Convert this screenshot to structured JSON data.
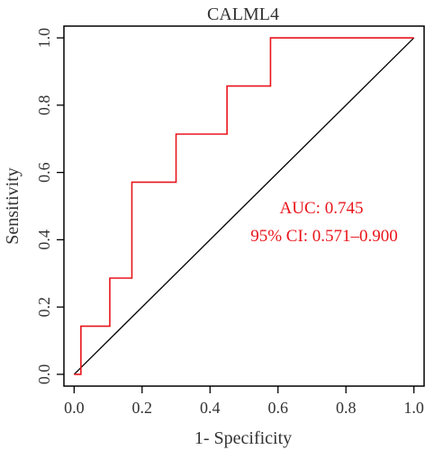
{
  "chart_data": {
    "type": "line",
    "title": "CALML4",
    "xlabel": "1- Specificity",
    "ylabel": "Sensitivity",
    "xlim": [
      -0.03,
      1.03
    ],
    "ylim": [
      -0.035,
      1.035
    ],
    "x_ticks": [
      {
        "value": 0.0,
        "label": "0.0"
      },
      {
        "value": 0.2,
        "label": "0.2"
      },
      {
        "value": 0.4,
        "label": "0.4"
      },
      {
        "value": 0.6,
        "label": "0.6"
      },
      {
        "value": 0.8,
        "label": "0.8"
      },
      {
        "value": 1.0,
        "label": "1.0"
      }
    ],
    "y_ticks": [
      {
        "value": 0.0,
        "label": "0.0"
      },
      {
        "value": 0.2,
        "label": "0.2"
      },
      {
        "value": 0.4,
        "label": "0.4"
      },
      {
        "value": 0.6,
        "label": "0.6"
      },
      {
        "value": 0.8,
        "label": "0.8"
      },
      {
        "value": 1.0,
        "label": "1.0"
      }
    ],
    "series": [
      {
        "color": "#e8151b",
        "points": [
          [
            0.0,
            0.0
          ],
          [
            0.02,
            0.0
          ],
          [
            0.02,
            0.143
          ],
          [
            0.105,
            0.143
          ],
          [
            0.105,
            0.286
          ],
          [
            0.17,
            0.286
          ],
          [
            0.17,
            0.571
          ],
          [
            0.3,
            0.571
          ],
          [
            0.3,
            0.714
          ],
          [
            0.45,
            0.714
          ],
          [
            0.45,
            0.857
          ],
          [
            0.578,
            0.857
          ],
          [
            0.578,
            1.0
          ],
          [
            1.0,
            1.0
          ]
        ]
      }
    ],
    "reference_line": {
      "from": [
        0,
        0
      ],
      "to": [
        1,
        1
      ],
      "color": "#000000"
    },
    "annotations": [
      {
        "text": "AUC: 0.745",
        "color": "#e8151b"
      },
      {
        "text": "95% CI: 0.571–0.900",
        "color": "#e8151b"
      }
    ],
    "grid": false,
    "axis_color": "#000000",
    "text_color": "#333333"
  }
}
